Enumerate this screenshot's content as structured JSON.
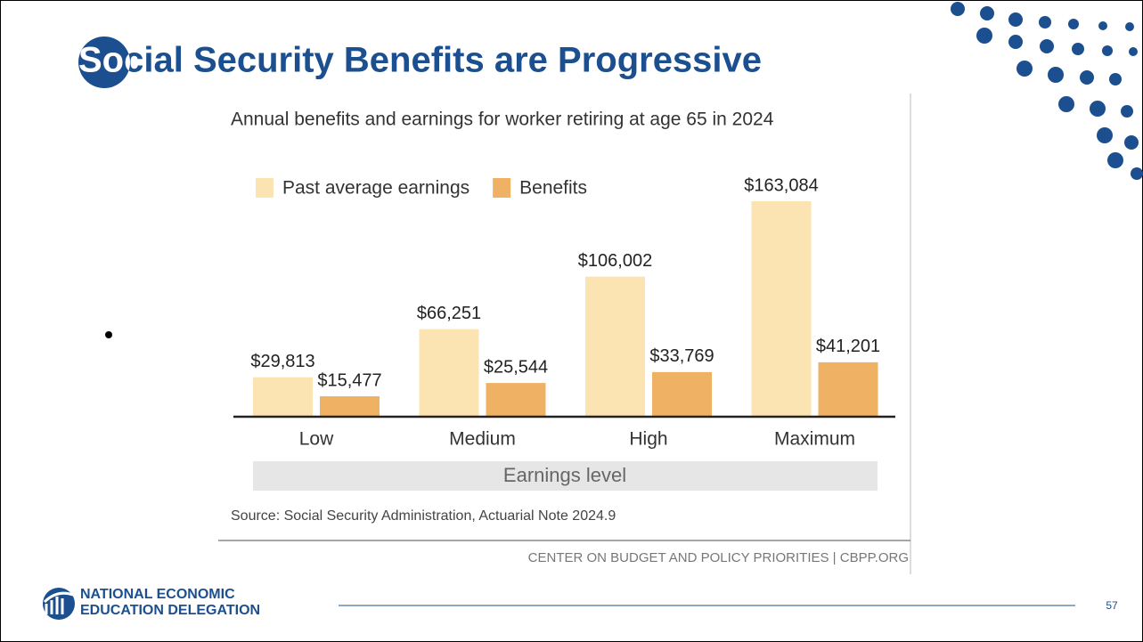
{
  "slide": {
    "title": "Social Security Benefits are Progressive",
    "logo_line1": "NATIONAL ECONOMIC",
    "logo_line2": "EDUCATION DELEGATION",
    "page_number": "57"
  },
  "chart_data": {
    "type": "bar",
    "subtitle": "Annual benefits and earnings for worker retiring at age 65 in 2024",
    "categories": [
      "Low",
      "Medium",
      "High",
      "Maximum"
    ],
    "series": [
      {
        "name": "Past average earnings",
        "color": "#fce3b2",
        "values": [
          29813,
          66251,
          106002,
          163084
        ],
        "value_labels": [
          "$29,813",
          "$66,251",
          "$106,002",
          "$163,084"
        ]
      },
      {
        "name": "Benefits",
        "color": "#efb265",
        "values": [
          15477,
          25544,
          33769,
          41201
        ],
        "value_labels": [
          "$15,477",
          "$25,544",
          "$33,769",
          "$41,201"
        ]
      }
    ],
    "x_label": "Earnings level",
    "source": "Source: Social Security Administration, Actuarial Note 2024.9",
    "credit": "CENTER ON BUDGET AND POLICY PRIORITIES | CBPP.ORG"
  }
}
